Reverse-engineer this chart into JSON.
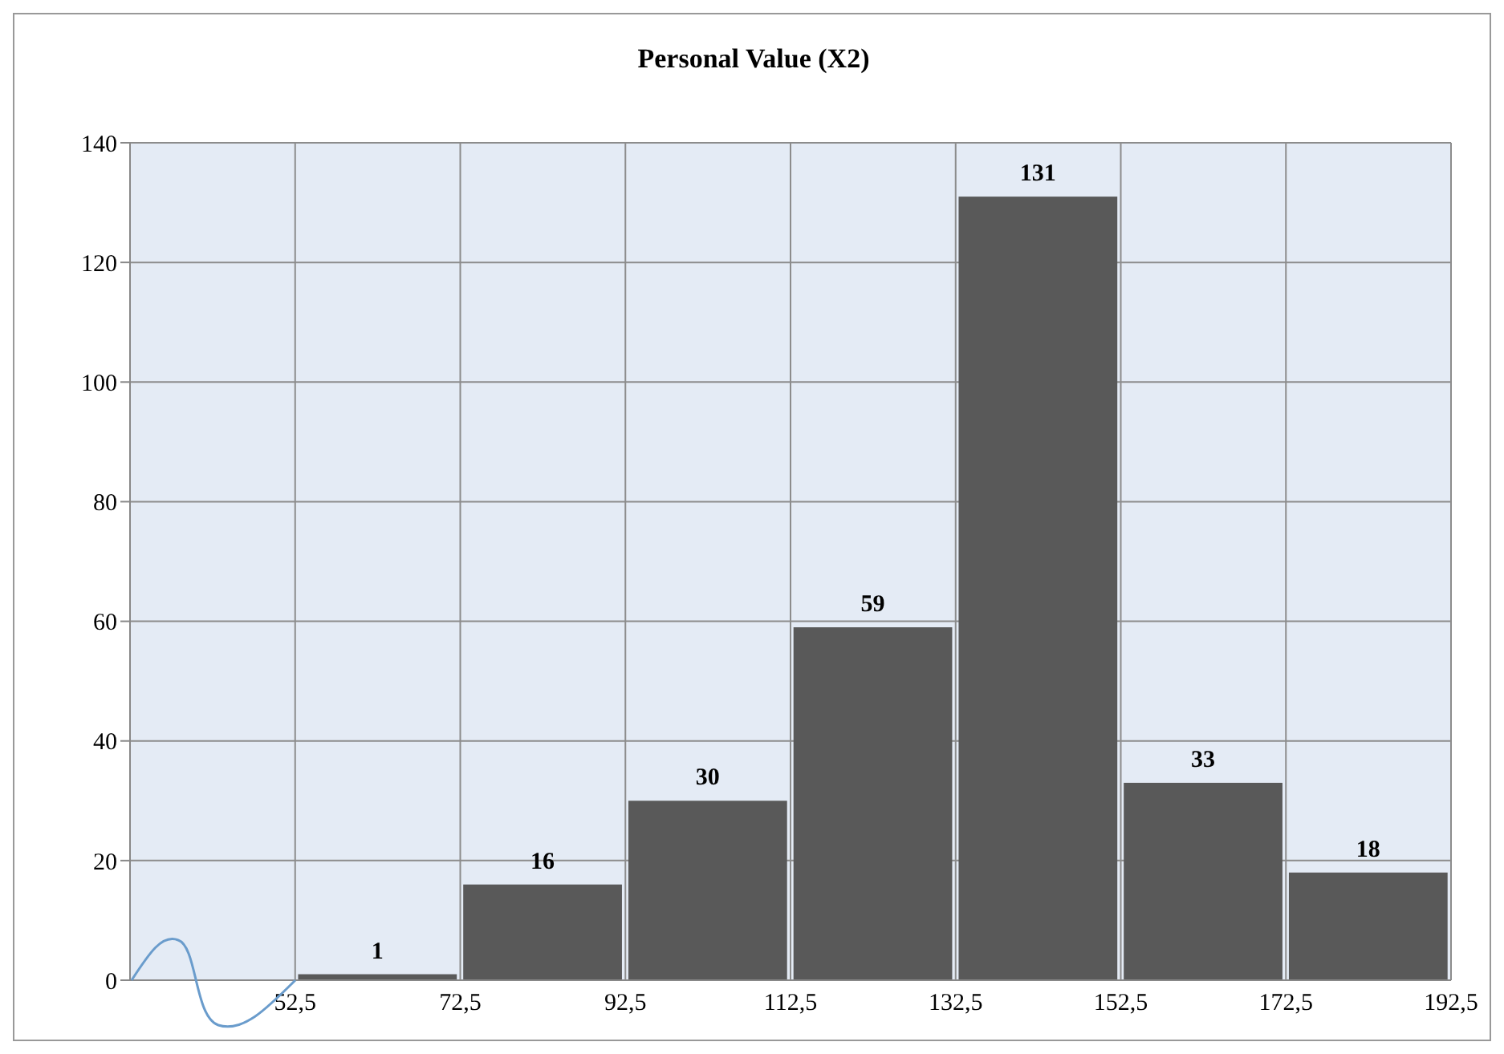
{
  "chart_data": {
    "type": "histogram",
    "title": "Personal Value (X2)",
    "bins": [
      52.5,
      72.5,
      92.5,
      112.5,
      132.5,
      152.5,
      172.5,
      192.5
    ],
    "values": [
      1,
      16,
      30,
      59,
      131,
      33,
      18
    ],
    "color": "#595959",
    "xlim": [
      32.5,
      192.5
    ],
    "xticks": [
      {
        "value": 52.5,
        "label": "52,5"
      },
      {
        "value": 72.5,
        "label": "72,5"
      },
      {
        "value": 92.5,
        "label": "92,5"
      },
      {
        "value": 112.5,
        "label": "112,5"
      },
      {
        "value": 132.5,
        "label": "132,5"
      },
      {
        "value": 152.5,
        "label": "152,5"
      },
      {
        "value": 172.5,
        "label": "172,5"
      },
      {
        "value": 192.5,
        "label": "192,5"
      }
    ],
    "ylim": [
      0,
      140
    ],
    "yticks": [
      0,
      20,
      40,
      60,
      80,
      100,
      120,
      140
    ],
    "grid": true,
    "data_labels": true
  }
}
